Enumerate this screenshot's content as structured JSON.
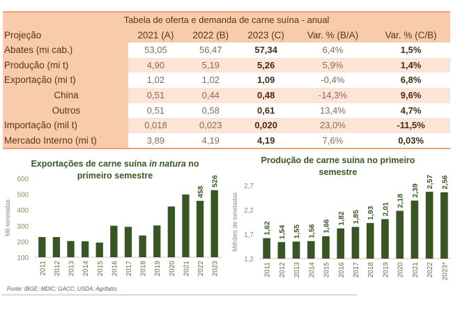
{
  "table": {
    "title": "Tabela de oferta e demanda de carne suína - anual",
    "columns": [
      "Projeção",
      "2021 (A)",
      "2022 (B)",
      "2023 (C)",
      "Var. % (B/A)",
      "Var. % (C/B)"
    ],
    "rows": [
      {
        "label": "Abates (mi cab.)",
        "a": "53,05",
        "b": "56,47",
        "c": "57,34",
        "var_ba": "6,4%",
        "var_cb": "1,5%"
      },
      {
        "label": "Produção (mi t)",
        "a": "4,90",
        "b": "5,19",
        "c": "5,26",
        "var_ba": "5,9%",
        "var_cb": "1,4%"
      },
      {
        "label": "Exportação (mi t)",
        "a": "1,02",
        "b": "1,02",
        "c": "1,09",
        "var_ba": "-0,4%",
        "var_cb": "6,8%"
      },
      {
        "label": "China",
        "a": "0,51",
        "b": "0,44",
        "c": "0,48",
        "var_ba": "-14,3%",
        "var_cb": "9,6%",
        "indent": true
      },
      {
        "label": "Outros",
        "a": "0,51",
        "b": "0,58",
        "c": "0,61",
        "var_ba": "13,4%",
        "var_cb": "4,7%",
        "indent": true
      },
      {
        "label": "Importação (mil t)",
        "a": "0,018",
        "b": "0,023",
        "c": "0,020",
        "var_ba": "23,0%",
        "var_cb": "-11,5%"
      },
      {
        "label": "Mercado Interno (mi t)",
        "a": "3,89",
        "b": "4,19",
        "c": "4,19",
        "var_ba": "7,6%",
        "var_cb": "0,03%"
      }
    ]
  },
  "colors": {
    "bar": "#375623",
    "title": "#385723",
    "table_header": "#f8cbad",
    "table_band": "#fce4d6",
    "table_border": "#f0a070"
  },
  "source": "Fonte: IBGE; MDIC; GACC; USDA; Agrifatto;",
  "chart_data": [
    {
      "type": "bar",
      "title_parts": [
        "Exportações de carne suína ",
        "in natura",
        " no primeiro semestre"
      ],
      "title": "Exportações de carne suína in natura no primeiro semestre",
      "xlabel": "",
      "ylabel": "Mil toneladas",
      "categories": [
        "2011",
        "2012",
        "2013",
        "2014",
        "2015",
        "2016",
        "2017",
        "2018",
        "2019",
        "2020",
        "2021",
        "2022",
        "2023"
      ],
      "values": [
        228,
        228,
        203,
        201,
        193,
        300,
        293,
        238,
        302,
        422,
        498,
        458,
        526
      ],
      "data_labels": [
        "",
        "",
        "",
        "",
        "",
        "",
        "",
        "",
        "",
        "",
        "",
        "458",
        "526"
      ],
      "ylim": [
        100,
        600
      ],
      "yticks": [
        "600",
        "500",
        "400",
        "300",
        "200",
        "100"
      ],
      "ytick_values": [
        600,
        500,
        400,
        300,
        200,
        100
      ],
      "grid": false
    },
    {
      "type": "bar",
      "title": "Produção de carne suína no primeiro semestre",
      "xlabel": "",
      "ylabel": "Milhões de toneladas",
      "categories": [
        "2011",
        "2012",
        "2013",
        "2014",
        "2015",
        "2016",
        "2017",
        "2018",
        "2019",
        "2020",
        "2021",
        "2022",
        "2023*"
      ],
      "values": [
        1.62,
        1.54,
        1.55,
        1.56,
        1.66,
        1.82,
        1.85,
        1.93,
        2.01,
        2.18,
        2.39,
        2.57,
        2.56
      ],
      "data_labels": [
        "1,62",
        "1,54",
        "1,55",
        "1,56",
        "1,66",
        "1,82",
        "1,85",
        "1,93",
        "2,01",
        "2,18",
        "2,39",
        "2,57",
        "2,56"
      ],
      "ylim": [
        1.2,
        2.7
      ],
      "yticks": [
        "2,7",
        "2,2",
        "1,7",
        "1,2"
      ],
      "ytick_values": [
        2.7,
        2.2,
        1.7,
        1.2
      ],
      "grid": false
    }
  ]
}
